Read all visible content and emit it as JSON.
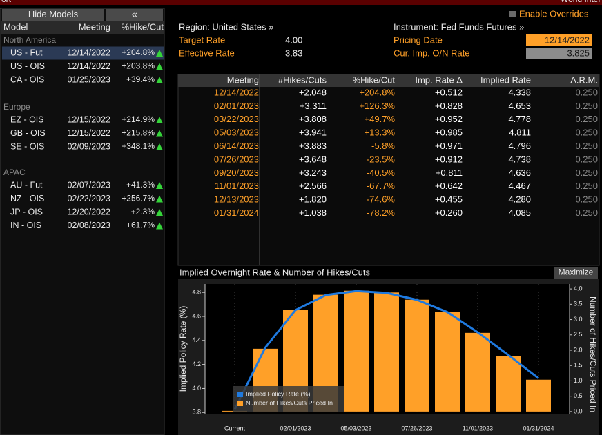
{
  "top_bar": {
    "left": "ort",
    "right": "World Inter"
  },
  "models_panel": {
    "buttons": [
      "Hide Models",
      "«"
    ],
    "columns": [
      "Model",
      "Meeting",
      "%Hike/Cut"
    ],
    "groups": [
      {
        "name": "North America",
        "rows": [
          [
            "US - Fut",
            "12/14/2022",
            "+204.8%"
          ],
          [
            "US - OIS",
            "12/14/2022",
            "+203.8%"
          ],
          [
            "CA - OIS",
            "01/25/2023",
            "+39.4%"
          ]
        ]
      },
      {
        "name": "Europe",
        "rows": [
          [
            "EZ - OIS",
            "12/15/2022",
            "+214.9%"
          ],
          [
            "GB - OIS",
            "12/15/2022",
            "+215.8%"
          ],
          [
            "SE - OIS",
            "02/09/2023",
            "+348.1%"
          ]
        ]
      },
      {
        "name": "APAC",
        "rows": [
          [
            "AU - Fut",
            "02/07/2023",
            "+41.3%"
          ],
          [
            "NZ - OIS",
            "02/22/2023",
            "+256.7%"
          ],
          [
            "JP - OIS",
            "12/20/2022",
            "+2.3%"
          ],
          [
            "IN - OIS",
            "02/08/2023",
            "+61.7%"
          ]
        ]
      }
    ]
  },
  "enable_overrides": "Enable Overrides",
  "info": {
    "region": "Region: United States »",
    "instrument": "Instrument: Fed Funds Futures »",
    "fields": [
      {
        "label": "Target Rate",
        "value": "4.00"
      },
      {
        "label": "Effective Rate",
        "value": "3.83"
      },
      {
        "label": "Pricing Date",
        "value": "12/14/2022"
      },
      {
        "label": "Cur. Imp. O/N Rate",
        "value": "3.825"
      }
    ]
  },
  "table": {
    "columns": [
      "Meeting",
      "#Hikes/Cuts",
      "%Hike/Cut",
      "Imp. Rate Δ",
      "Implied Rate",
      "A.R.M."
    ],
    "rows": [
      [
        "12/14/2022",
        "+2.048",
        "+204.8%",
        "+0.512",
        "4.338",
        "0.250"
      ],
      [
        "02/01/2023",
        "+3.311",
        "+126.3%",
        "+0.828",
        "4.653",
        "0.250"
      ],
      [
        "03/22/2023",
        "+3.808",
        "+49.7%",
        "+0.952",
        "4.778",
        "0.250"
      ],
      [
        "05/03/2023",
        "+3.941",
        "+13.3%",
        "+0.985",
        "4.811",
        "0.250"
      ],
      [
        "06/14/2023",
        "+3.883",
        "-5.8%",
        "+0.971",
        "4.796",
        "0.250"
      ],
      [
        "07/26/2023",
        "+3.648",
        "-23.5%",
        "+0.912",
        "4.738",
        "0.250"
      ],
      [
        "09/20/2023",
        "+3.243",
        "-40.5%",
        "+0.811",
        "4.636",
        "0.250"
      ],
      [
        "11/01/2023",
        "+2.566",
        "-67.7%",
        "+0.642",
        "4.467",
        "0.250"
      ],
      [
        "12/13/2023",
        "+1.820",
        "-74.6%",
        "+0.455",
        "4.280",
        "0.250"
      ],
      [
        "01/31/2024",
        "+1.038",
        "-78.2%",
        "+0.260",
        "4.085",
        "0.250"
      ]
    ]
  },
  "maximize": "Maximize",
  "chart_data": {
    "type": "combo",
    "title": "Implied Overnight Rate & Number of Hikes/Cuts",
    "ylabel": "Implied Policy Rate (%)",
    "y2label": "Number of Hikes/Cuts Priced In",
    "categories": [
      "Current",
      null,
      "02/01/2023",
      null,
      "05/03/2023",
      null,
      "07/26/2023",
      null,
      "11/01/2023",
      null,
      "01/31/2024"
    ],
    "series": [
      {
        "name": "Implied Policy Rate (%)",
        "type": "line",
        "color": "#1f7ae0",
        "values": [
          3.825,
          4.338,
          4.653,
          4.778,
          4.811,
          4.796,
          4.738,
          4.636,
          4.467,
          4.28,
          4.085
        ]
      },
      {
        "name": "Number of Hikes/Cuts Priced In",
        "type": "bar",
        "axis": "y2",
        "color": "#ffa028",
        "values": [
          0,
          2.048,
          3.311,
          3.808,
          3.941,
          3.883,
          3.648,
          3.243,
          2.566,
          1.82,
          1.038
        ]
      }
    ],
    "ylim": [
      3.79,
      4.87
    ],
    "yticks": [
      3.8,
      {
        "value": 4,
        "label": "4.0"
      },
      4.2,
      4.4,
      4.6,
      4.8
    ],
    "y2lim": [
      -0.07,
      4.16
    ],
    "y2ticks": [
      {
        "value": 0,
        "label": "0.0"
      },
      0.5,
      {
        "value": 1,
        "label": "1.0"
      },
      1.5,
      {
        "value": 2,
        "label": "2.0"
      },
      2.5,
      {
        "value": 3,
        "label": "3.0"
      },
      3.5,
      {
        "value": 4,
        "label": "4.0"
      }
    ],
    "legend": "lower left"
  }
}
